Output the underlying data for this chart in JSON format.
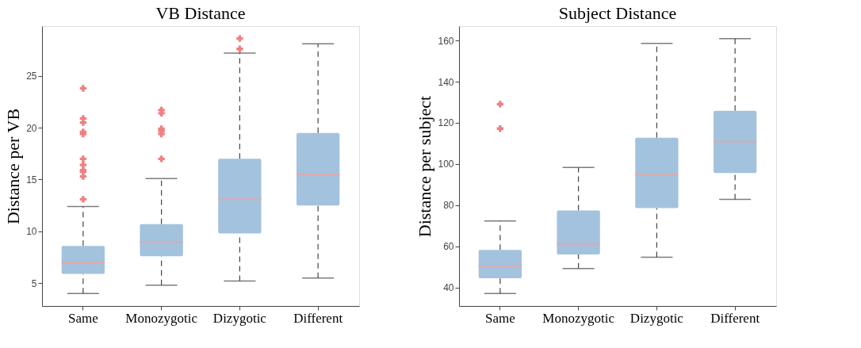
{
  "chart_data": [
    {
      "type": "box",
      "title": "VB Distance",
      "ylabel": "Distance per VB",
      "categories": [
        "Same",
        "Monozygotic",
        "Dizygotic",
        "Different"
      ],
      "ylim": [
        2.8,
        29.8
      ],
      "yticks": [
        5,
        10,
        15,
        20,
        25
      ],
      "grid": false,
      "series": [
        {
          "color": "#a3c2de",
          "boxes": [
            {
              "low": 4.0,
              "q1": 5.9,
              "median": 7.0,
              "q3": 8.6,
              "high": 12.4,
              "outliers": [
                23.8,
                20.9,
                20.5,
                19.6,
                19.4,
                17.0,
                16.4,
                15.9,
                15.75,
                15.3,
                13.1
              ]
            },
            {
              "low": 4.8,
              "q1": 7.6,
              "median": 9.0,
              "q3": 10.7,
              "high": 15.1,
              "outliers": [
                21.7,
                21.4,
                19.9,
                19.7,
                19.4,
                17.0
              ]
            },
            {
              "low": 5.2,
              "q1": 9.8,
              "median": 13.1,
              "q3": 17.0,
              "high": 27.2,
              "outliers": [
                28.6,
                27.6
              ]
            },
            {
              "low": 5.5,
              "q1": 12.5,
              "median": 15.5,
              "q3": 19.5,
              "high": 28.1
            }
          ]
        }
      ]
    },
    {
      "type": "box",
      "title": "Subject Distance",
      "ylabel": "Distance per subject",
      "categories": [
        "Same",
        "Monozygotic",
        "Dizygotic",
        "Different"
      ],
      "ylim": [
        31,
        167
      ],
      "yticks": [
        40,
        60,
        80,
        100,
        120,
        140,
        160
      ],
      "grid": false,
      "series": [
        {
          "color": "#a3c2de",
          "boxes": [
            {
              "low": 37.1,
              "q1": 44.5,
              "median": 50.4,
              "q3": 58.3,
              "high": 72.3,
              "outliers": [
                129.1,
                117.2
              ]
            },
            {
              "low": 49.2,
              "q1": 56.0,
              "median": 61.2,
              "q3": 77.4,
              "high": 98.3
            },
            {
              "low": 54.7,
              "q1": 78.6,
              "median": 94.9,
              "q3": 112.8,
              "high": 158.6
            },
            {
              "low": 82.8,
              "q1": 95.6,
              "median": 110.9,
              "q3": 125.9,
              "high": 160.9
            }
          ]
        }
      ]
    }
  ]
}
